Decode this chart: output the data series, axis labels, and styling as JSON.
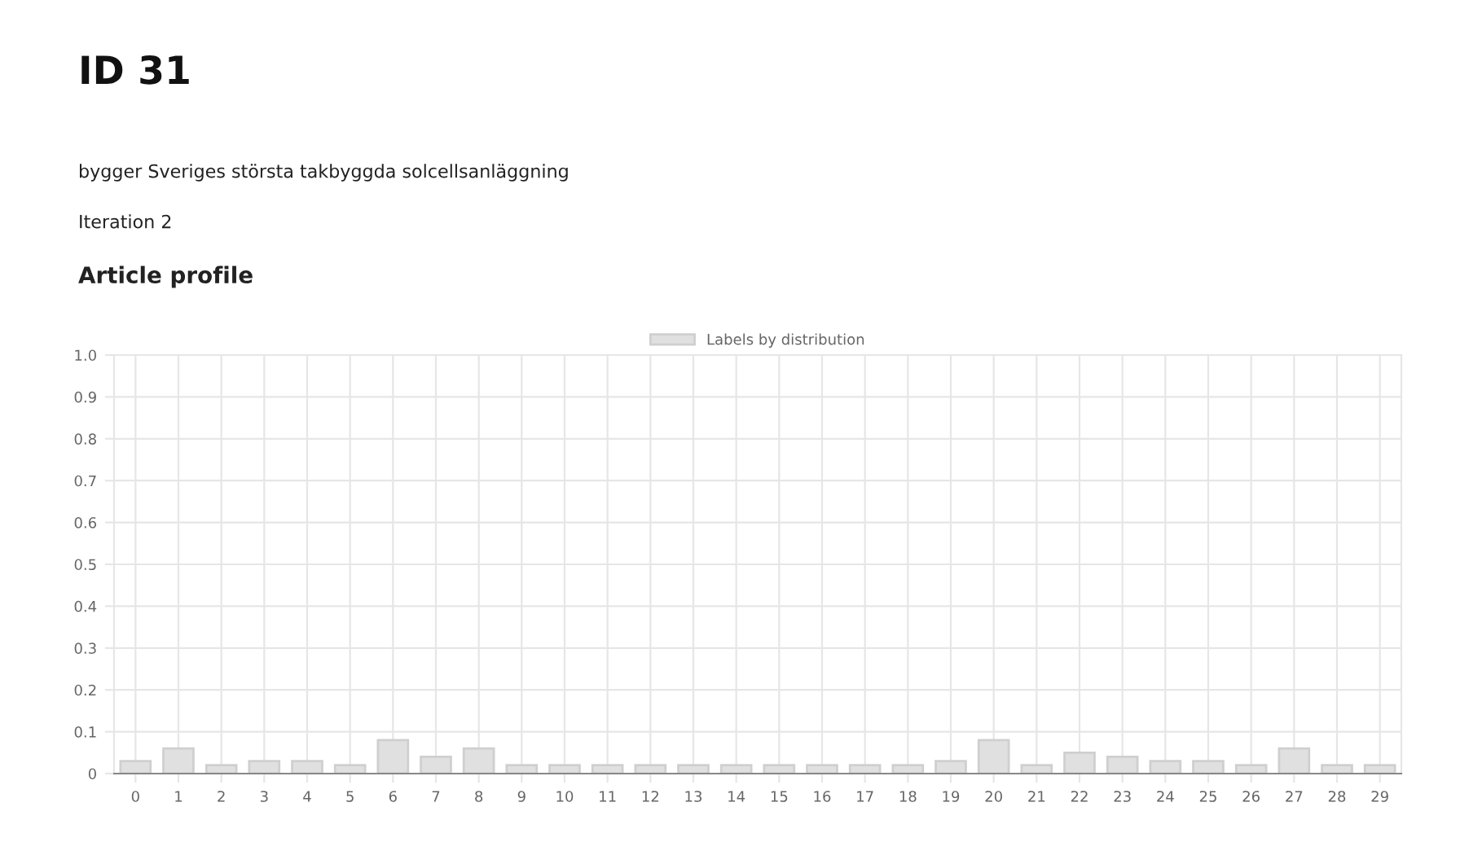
{
  "chart_data": {
    "type": "bar",
    "title": "ID 31",
    "subtitle": "bygger Sveriges största takbyggda solcellsanläggning",
    "annotations": [
      "Iteration 2",
      "Article profile"
    ],
    "categories": [
      "0",
      "1",
      "2",
      "3",
      "4",
      "5",
      "6",
      "7",
      "8",
      "9",
      "10",
      "11",
      "12",
      "13",
      "14",
      "15",
      "16",
      "17",
      "18",
      "19",
      "20",
      "21",
      "22",
      "23",
      "24",
      "25",
      "26",
      "27",
      "28",
      "29"
    ],
    "series": [
      {
        "name": "Labels by distribution",
        "color": "#e0e0e0",
        "values": [
          0.03,
          0.06,
          0.02,
          0.03,
          0.03,
          0.02,
          0.08,
          0.04,
          0.06,
          0.02,
          0.02,
          0.02,
          0.02,
          0.02,
          0.02,
          0.02,
          0.02,
          0.02,
          0.02,
          0.03,
          0.08,
          0.02,
          0.05,
          0.04,
          0.03,
          0.03,
          0.02,
          0.06,
          0.02,
          0.02
        ]
      }
    ],
    "ylim": [
      0,
      1.0
    ],
    "yticks": [
      0,
      0.1,
      0.2,
      0.3,
      0.4,
      0.5,
      0.6,
      0.7,
      0.8,
      0.9,
      {
        "value": 1.0,
        "label": "1.0"
      }
    ],
    "grid": true,
    "legend": "top"
  }
}
